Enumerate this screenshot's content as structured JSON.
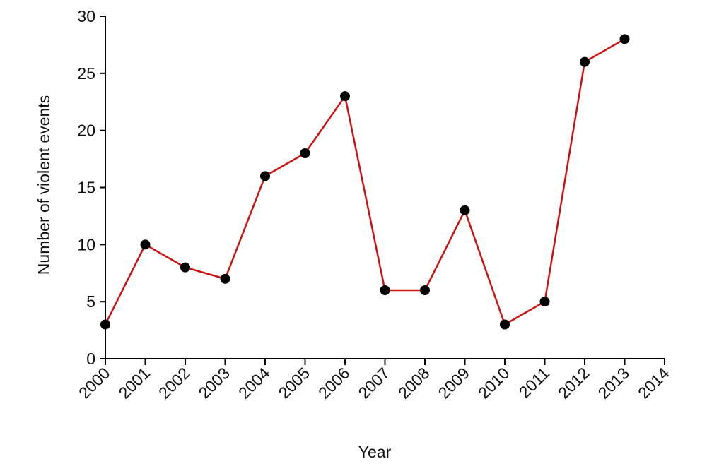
{
  "chart_data": {
    "type": "line",
    "x": [
      2000,
      2001,
      2002,
      2003,
      2004,
      2005,
      2006,
      2007,
      2008,
      2009,
      2010,
      2011,
      2012,
      2013
    ],
    "values": [
      3,
      10,
      8,
      7,
      16,
      18,
      23,
      6,
      6,
      13,
      3,
      5,
      26,
      28
    ],
    "color": "#cc1111",
    "marker_color": "#000000",
    "x_label": "Year",
    "y_label": "Number of violent events",
    "xlim": [
      2000,
      2014
    ],
    "xticks": [
      2000,
      2001,
      2002,
      2003,
      2004,
      2005,
      2006,
      2007,
      2008,
      2009,
      2010,
      2011,
      2012,
      2013,
      2014
    ],
    "ylim": [
      0,
      30
    ],
    "yticks": [
      0,
      5,
      10,
      15,
      20,
      25,
      30
    ],
    "grid": false
  }
}
